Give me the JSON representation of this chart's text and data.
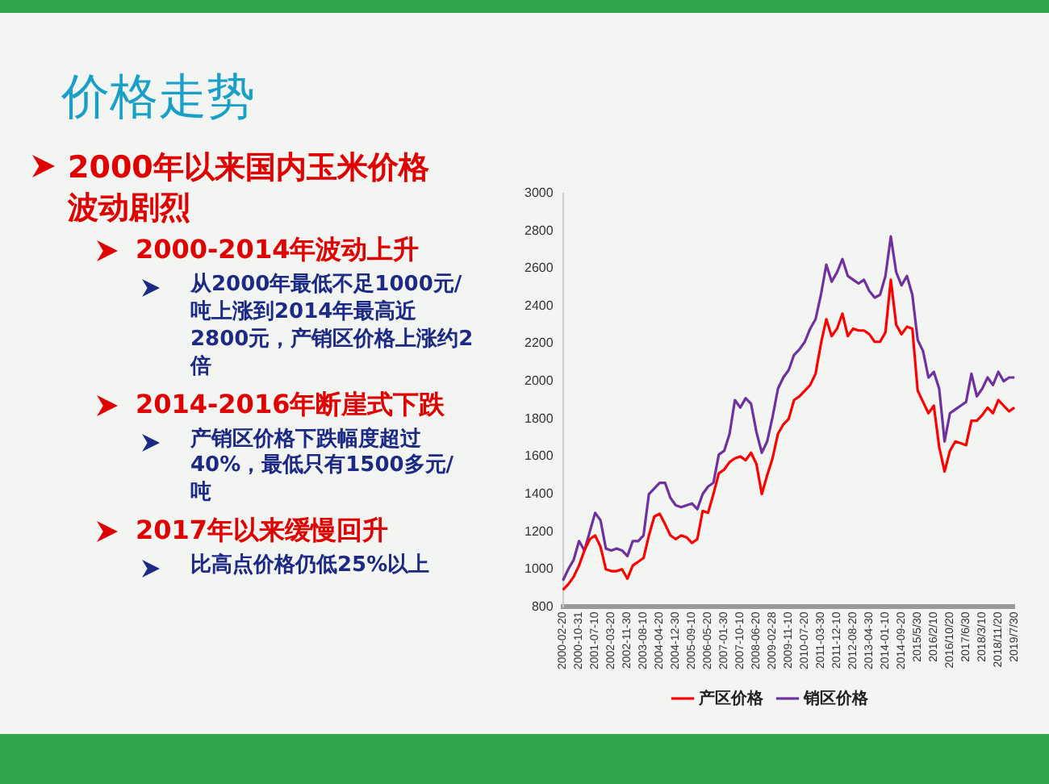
{
  "chart_data": {
    "type": "line",
    "title": "价格走势",
    "annotations": [
      "2000年以来国内玉米价格波动剧烈",
      "2000-2014年波动上升",
      "从2000年最低不足1000元/吨上涨到2014年最高近2800元，产销区价格上涨约2倍",
      "2014-2016年断崖式下跌",
      "产销区价格下跌幅度超过40%，最低只有1500多元/吨",
      "2017年以来缓慢回升",
      "比高点价格仍低25%以上"
    ],
    "categories": [
      "2000-02-20",
      null,
      null,
      "2000-10-31",
      null,
      null,
      "2001-07-10",
      null,
      null,
      "2002-03-20",
      null,
      null,
      "2002-11-30",
      null,
      null,
      "2003-08-10",
      null,
      null,
      "2004-04-20",
      null,
      null,
      "2004-12-30",
      null,
      null,
      "2005-09-10",
      null,
      null,
      "2006-05-20",
      null,
      null,
      "2007-01-30",
      null,
      null,
      "2007-10-10",
      null,
      null,
      "2008-06-20",
      null,
      null,
      "2009-02-28",
      null,
      null,
      "2009-11-10",
      null,
      null,
      "2010-07-20",
      null,
      null,
      "2011-03-30",
      null,
      null,
      "2011-12-10",
      null,
      null,
      "2012-08-20",
      null,
      null,
      "2013-04-30",
      null,
      null,
      "2014-01-10",
      null,
      null,
      "2014-09-20",
      null,
      null,
      "2015/5/30",
      null,
      null,
      "2016/2/10",
      null,
      null,
      "2016/10/20",
      null,
      null,
      "2017/6/30",
      null,
      null,
      "2018/3/10",
      null,
      null,
      "2018/11/20",
      null,
      null,
      "2019/7/30"
    ],
    "series": [
      {
        "name": "产区价格",
        "color": "#ff0000",
        "values": [
          890,
          920,
          960,
          1020,
          1100,
          1160,
          1180,
          1120,
          1000,
          990,
          990,
          1000,
          950,
          1020,
          1040,
          1060,
          1180,
          1280,
          1295,
          1240,
          1180,
          1160,
          1180,
          1170,
          1140,
          1160,
          1310,
          1300,
          1400,
          1510,
          1530,
          1570,
          1590,
          1600,
          1580,
          1620,
          1560,
          1400,
          1500,
          1590,
          1720,
          1770,
          1800,
          1900,
          1920,
          1950,
          1980,
          2040,
          2200,
          2330,
          2240,
          2280,
          2360,
          2240,
          2280,
          2270,
          2270,
          2250,
          2210,
          2210,
          2260,
          2540,
          2300,
          2250,
          2290,
          2280,
          1950,
          1890,
          1830,
          1870,
          1650,
          1520,
          1630,
          1680,
          1670,
          1660,
          1790,
          1790,
          1820,
          1860,
          1830,
          1900,
          1870,
          1840,
          1860
        ]
      },
      {
        "name": "销区价格",
        "color": "#7030a0",
        "values": [
          940,
          1000,
          1050,
          1150,
          1100,
          1200,
          1300,
          1260,
          1110,
          1100,
          1110,
          1100,
          1070,
          1150,
          1150,
          1180,
          1400,
          1430,
          1460,
          1460,
          1380,
          1340,
          1330,
          1340,
          1350,
          1320,
          1400,
          1440,
          1460,
          1610,
          1630,
          1720,
          1900,
          1860,
          1910,
          1880,
          1730,
          1620,
          1680,
          1810,
          1960,
          2020,
          2060,
          2140,
          2170,
          2210,
          2280,
          2330,
          2460,
          2620,
          2530,
          2580,
          2650,
          2560,
          2540,
          2520,
          2540,
          2480,
          2445,
          2460,
          2560,
          2770,
          2580,
          2510,
          2560,
          2460,
          2220,
          2160,
          2020,
          2050,
          1960,
          1680,
          1830,
          1850,
          1870,
          1890,
          2040,
          1920,
          1960,
          2020,
          1980,
          2050,
          2000,
          2020,
          2020
        ]
      }
    ],
    "ylim": [
      800,
      3000
    ],
    "yticks": [
      800,
      1000,
      1200,
      1400,
      1600,
      1800,
      2000,
      2200,
      2400,
      2600,
      2800,
      3000
    ],
    "grid": false,
    "legend": "bottom",
    "marker": "none",
    "line_style": "solid"
  }
}
